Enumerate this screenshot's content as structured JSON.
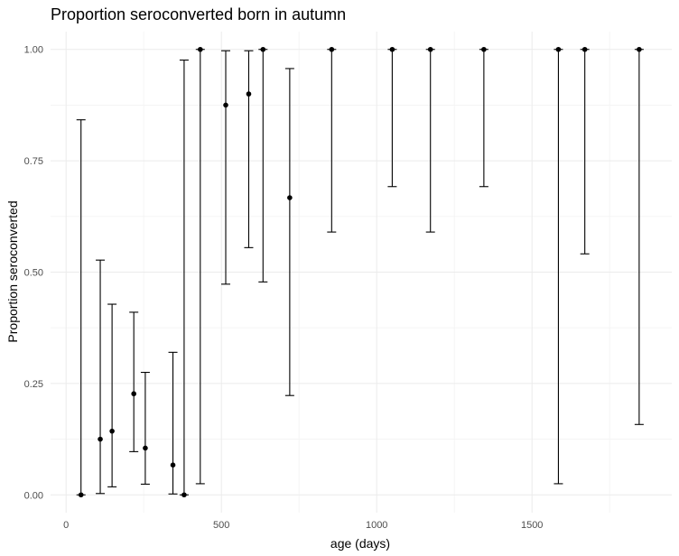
{
  "chart_data": {
    "type": "scatter",
    "title": "Proportion seroconverted born in autumn",
    "xlabel": "age (days)",
    "ylabel": "Proportion seroconverted",
    "xlim": [
      -50,
      1950
    ],
    "ylim": [
      -0.04,
      1.04
    ],
    "x_ticks": [
      0,
      500,
      1000,
      1500
    ],
    "x_tick_labels": [
      "0",
      "500",
      "1000",
      "1500"
    ],
    "y_ticks": [
      0,
      0.25,
      0.5,
      0.75,
      1.0
    ],
    "y_tick_labels": [
      "0.00",
      "0.25",
      "0.50",
      "0.75",
      "1.00"
    ],
    "x_minor": [
      250,
      750,
      1250,
      1750
    ],
    "y_minor": [
      0.125,
      0.375,
      0.625,
      0.875
    ],
    "grid": true,
    "points": [
      {
        "x": 48,
        "y": 0.0,
        "lo": 0.0,
        "hi": 0.842
      },
      {
        "x": 110,
        "y": 0.125,
        "lo": 0.003,
        "hi": 0.527
      },
      {
        "x": 148,
        "y": 0.143,
        "lo": 0.018,
        "hi": 0.428
      },
      {
        "x": 218,
        "y": 0.227,
        "lo": 0.097,
        "hi": 0.41
      },
      {
        "x": 255,
        "y": 0.105,
        "lo": 0.024,
        "hi": 0.275
      },
      {
        "x": 344,
        "y": 0.067,
        "lo": 0.002,
        "hi": 0.32
      },
      {
        "x": 380,
        "y": 0.0,
        "lo": 0.0,
        "hi": 0.976
      },
      {
        "x": 432,
        "y": 1.0,
        "lo": 0.025,
        "hi": 1.0
      },
      {
        "x": 514,
        "y": 0.875,
        "lo": 0.473,
        "hi": 0.997
      },
      {
        "x": 588,
        "y": 0.9,
        "lo": 0.555,
        "hi": 0.997
      },
      {
        "x": 634,
        "y": 1.0,
        "lo": 0.478,
        "hi": 1.0
      },
      {
        "x": 720,
        "y": 0.667,
        "lo": 0.223,
        "hi": 0.957
      },
      {
        "x": 855,
        "y": 1.0,
        "lo": 0.59,
        "hi": 1.0
      },
      {
        "x": 1050,
        "y": 1.0,
        "lo": 0.692,
        "hi": 1.0
      },
      {
        "x": 1173,
        "y": 1.0,
        "lo": 0.59,
        "hi": 1.0
      },
      {
        "x": 1345,
        "y": 1.0,
        "lo": 0.692,
        "hi": 1.0
      },
      {
        "x": 1585,
        "y": 1.0,
        "lo": 0.025,
        "hi": 1.0
      },
      {
        "x": 1670,
        "y": 1.0,
        "lo": 0.541,
        "hi": 1.0
      },
      {
        "x": 1845,
        "y": 1.0,
        "lo": 0.158,
        "hi": 1.0
      }
    ]
  }
}
